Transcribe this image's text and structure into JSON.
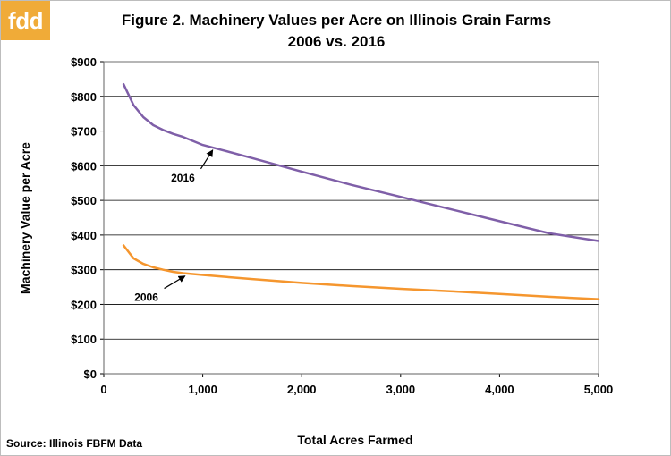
{
  "branding": {
    "logo_text": "fdd",
    "logo_color": "#f0ab38"
  },
  "source_note": "Source: Illinois FBFM Data",
  "chart_data": {
    "type": "line",
    "title": "Figure 2. Machinery Values per Acre on Illinois Grain Farms",
    "subtitle": "2006 vs. 2016",
    "xlabel": "Total Acres Farmed",
    "ylabel": "Machinery Value per Acre",
    "xlim": [
      0,
      5000
    ],
    "ylim": [
      0,
      900
    ],
    "x_ticks": [
      0,
      1000,
      2000,
      3000,
      4000,
      5000
    ],
    "x_tick_labels": [
      "0",
      "1,000",
      "2,000",
      "3,000",
      "4,000",
      "5,000"
    ],
    "y_ticks": [
      0,
      100,
      200,
      300,
      400,
      500,
      600,
      700,
      800,
      900
    ],
    "y_tick_labels": [
      "$0",
      "$100",
      "$200",
      "$300",
      "$400",
      "$500",
      "$600",
      "$700",
      "$800",
      "$900"
    ],
    "grid": "horizontal",
    "series": [
      {
        "name": "2016",
        "color": "#7f5fa8",
        "x": [
          200,
          300,
          400,
          500,
          600,
          700,
          800,
          1000,
          1200,
          1500,
          2000,
          2500,
          3000,
          3500,
          4000,
          4500,
          5000
        ],
        "y": [
          835,
          775,
          740,
          717,
          703,
          692,
          683,
          660,
          645,
          622,
          583,
          545,
          510,
          475,
          440,
          405,
          383
        ]
      },
      {
        "name": "2006",
        "color": "#f5962e",
        "x": [
          200,
          300,
          400,
          500,
          600,
          700,
          800,
          1000,
          1200,
          1500,
          2000,
          2500,
          3000,
          3500,
          4000,
          4500,
          5000
        ],
        "y": [
          370,
          333,
          317,
          307,
          300,
          294,
          290,
          285,
          280,
          273,
          262,
          253,
          245,
          238,
          230,
          222,
          215
        ]
      }
    ],
    "annotations": [
      {
        "text": "2016",
        "series": "2016",
        "at_x": 1100,
        "text_x": 800,
        "text_y": 555
      },
      {
        "text": "2006",
        "series": "2006",
        "at_x": 820,
        "text_x": 430,
        "text_y": 210
      }
    ]
  }
}
